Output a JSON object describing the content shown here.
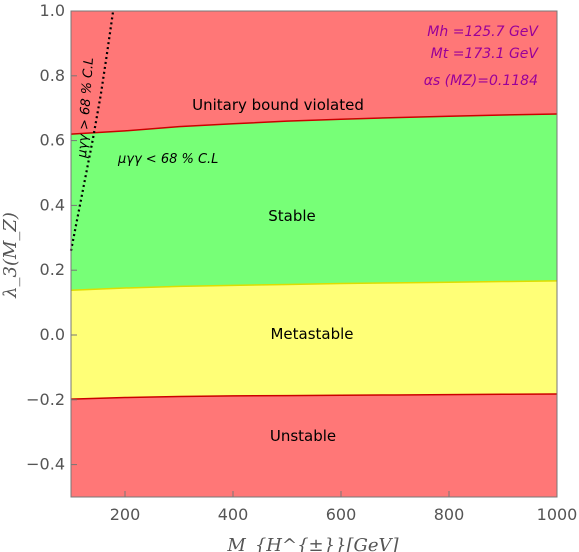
{
  "chart_data": {
    "type": "area",
    "xlabel": "M_{H^{±}}[GeV]",
    "ylabel": "λ_3(M_Z)",
    "xlim": [
      100,
      1000
    ],
    "ylim": [
      -0.5,
      1.0
    ],
    "x_ticks": [
      "200",
      "400",
      "600",
      "800",
      "1000"
    ],
    "y_ticks": [
      "−0.4",
      "−0.2",
      "0.0",
      "0.2",
      "0.4",
      "0.6",
      "0.8",
      "1.0"
    ],
    "x_tick_values": [
      200,
      400,
      600,
      800,
      1000
    ],
    "y_tick_values": [
      -0.4,
      -0.2,
      0.0,
      0.2,
      0.4,
      0.6,
      0.8,
      1.0
    ],
    "grid": false,
    "regions": [
      {
        "name": "Unitary bound violated",
        "color": "#ff7777"
      },
      {
        "name": "Stable",
        "color": "#77ff77"
      },
      {
        "name": "Metastable",
        "color": "#ffff77"
      },
      {
        "name": "Unstable",
        "color": "#ff7777"
      }
    ],
    "boundaries": {
      "unitarity": {
        "x": [
          100,
          200,
          300,
          400,
          500,
          600,
          700,
          800,
          900,
          1000
        ],
        "y": [
          0.62,
          0.63,
          0.643,
          0.652,
          0.66,
          0.666,
          0.671,
          0.675,
          0.679,
          0.682
        ]
      },
      "stability": {
        "x": [
          100,
          200,
          300,
          400,
          500,
          600,
          700,
          800,
          900,
          1000
        ],
        "y": [
          0.138,
          0.145,
          0.15,
          0.153,
          0.156,
          0.159,
          0.161,
          0.163,
          0.165,
          0.167
        ]
      },
      "metastability": {
        "x": [
          100,
          200,
          300,
          400,
          500,
          600,
          700,
          800,
          900,
          1000
        ],
        "y": [
          -0.198,
          -0.193,
          -0.19,
          -0.188,
          -0.187,
          -0.186,
          -0.185,
          -0.184,
          -0.183,
          -0.182
        ]
      },
      "mu_gamma_gamma": {
        "x": [
          100,
          120,
          140,
          155,
          165,
          172,
          178
        ],
        "y": [
          0.26,
          0.43,
          0.6,
          0.74,
          0.85,
          0.93,
          1.0
        ]
      }
    },
    "region_labels": {
      "unitary": "Unitary bound violated",
      "stable": "Stable",
      "metastable": "Metastable",
      "unstable": "Unstable"
    },
    "annotations": {
      "mu_inside": "μγγ < 68 % C.L",
      "mu_outside": "μγγ > 68 % C.L"
    },
    "parameters": [
      "Mh =125.7 GeV",
      "Mt =173.1 GeV",
      "αs (MZ)=0.1184"
    ]
  }
}
